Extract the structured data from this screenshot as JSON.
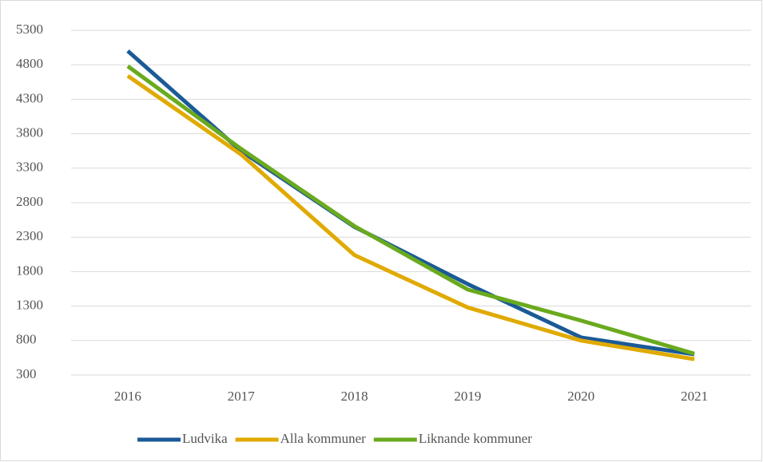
{
  "chart_data": {
    "type": "line",
    "categories": [
      "2016",
      "2017",
      "2018",
      "2019",
      "2020",
      "2021"
    ],
    "series": [
      {
        "name": "Ludvika",
        "color": "#1b5a96",
        "values": [
          5000,
          3550,
          2450,
          1620,
          845,
          600
        ]
      },
      {
        "name": "Alla kommuner",
        "color": "#e0aa00",
        "values": [
          4640,
          3500,
          2040,
          1280,
          800,
          530
        ]
      },
      {
        "name": "Liknande kommuner",
        "color": "#6aaa1e",
        "values": [
          4780,
          3580,
          2460,
          1540,
          1090,
          610
        ]
      }
    ],
    "ylim": [
      300,
      5300
    ],
    "yticks": [
      300,
      800,
      1300,
      1800,
      2300,
      2800,
      3300,
      3800,
      4300,
      4800,
      5300
    ],
    "grid": true,
    "legend": "bottom"
  }
}
